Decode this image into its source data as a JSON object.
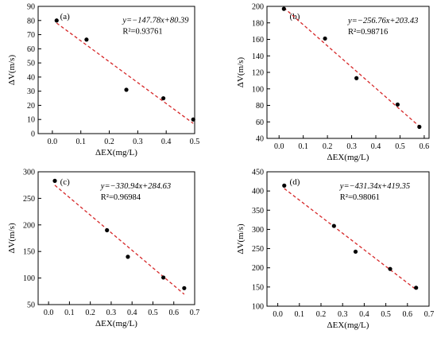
{
  "colors": {
    "fit_line": "#d62728",
    "points": "#000000"
  },
  "chart_data": [
    {
      "type": "scatter",
      "panel": "(a)",
      "xlabel": "ΔEX(mg/L)",
      "ylabel": "ΔV(m/s)",
      "xlim": [
        -0.05,
        0.5
      ],
      "ylim": [
        0,
        90
      ],
      "xticks": [
        0.0,
        0.1,
        0.2,
        0.3,
        0.4,
        0.5
      ],
      "xtick_labels": [
        "0.0",
        "0.1",
        "0.2",
        "0.3",
        "0.4",
        "0.5"
      ],
      "yticks": [
        0,
        10,
        20,
        30,
        40,
        50,
        60,
        70,
        80,
        90
      ],
      "ytick_labels": [
        "0",
        "10",
        "20",
        "30",
        "40",
        "50",
        "60",
        "70",
        "80",
        "90"
      ],
      "points": [
        [
          0.015,
          80
        ],
        [
          0.12,
          66.5
        ],
        [
          0.26,
          31
        ],
        [
          0.39,
          25
        ],
        [
          0.495,
          10
        ]
      ],
      "fit": {
        "slope": -147.78,
        "intercept": 80.39,
        "x_range": [
          0.015,
          0.495
        ]
      },
      "equation": "y=−147.78x+80.39",
      "r2_label": "R²=0.93761"
    },
    {
      "type": "scatter",
      "panel": "(b)",
      "xlabel": "ΔEX(mg/L)",
      "ylabel": "ΔV(m/s)",
      "xlim": [
        -0.05,
        0.62
      ],
      "ylim": [
        40,
        200
      ],
      "xticks": [
        0.0,
        0.1,
        0.2,
        0.3,
        0.4,
        0.5,
        0.6
      ],
      "xtick_labels": [
        "0.0",
        "0.1",
        "0.2",
        "0.3",
        "0.4",
        "0.5",
        "0.6"
      ],
      "yticks": [
        40,
        60,
        80,
        100,
        120,
        140,
        160,
        180,
        200
      ],
      "ytick_labels": [
        "40",
        "60",
        "80",
        "100",
        "120",
        "140",
        "160",
        "180",
        "200"
      ],
      "points": [
        [
          0.02,
          197
        ],
        [
          0.19,
          161
        ],
        [
          0.32,
          113
        ],
        [
          0.49,
          81
        ],
        [
          0.58,
          54
        ]
      ],
      "fit": {
        "slope": -256.76,
        "intercept": 203.43,
        "x_range": [
          0.02,
          0.58
        ]
      },
      "equation": "y=−256.76x+203.43",
      "r2_label": "R²=0.98716"
    },
    {
      "type": "scatter",
      "panel": "(c)",
      "xlabel": "ΔEX(mg/L)",
      "ylabel": "ΔV(m/s)",
      "xlim": [
        -0.05,
        0.7
      ],
      "ylim": [
        50,
        300
      ],
      "xticks": [
        0.0,
        0.1,
        0.2,
        0.3,
        0.4,
        0.5,
        0.6,
        0.7
      ],
      "xtick_labels": [
        "0.0",
        "0.1",
        "0.2",
        "0.3",
        "0.4",
        "0.5",
        "0.6",
        "0.7"
      ],
      "yticks": [
        50,
        100,
        150,
        200,
        250,
        300
      ],
      "ytick_labels": [
        "50",
        "100",
        "150",
        "200",
        "250",
        "300"
      ],
      "points": [
        [
          0.03,
          283
        ],
        [
          0.28,
          190
        ],
        [
          0.38,
          140
        ],
        [
          0.55,
          101
        ],
        [
          0.65,
          81
        ]
      ],
      "fit": {
        "slope": -330.94,
        "intercept": 284.63,
        "x_range": [
          0.03,
          0.65
        ]
      },
      "equation": "y=−330.94x+284.63",
      "r2_label": "R²=0.96984"
    },
    {
      "type": "scatter",
      "panel": "(d)",
      "xlabel": "ΔEX(mg/L)",
      "ylabel": "ΔV(m/s)",
      "xlim": [
        -0.05,
        0.7
      ],
      "ylim": [
        100,
        450
      ],
      "xticks": [
        0.0,
        0.1,
        0.2,
        0.3,
        0.4,
        0.5,
        0.6,
        0.7
      ],
      "xtick_labels": [
        "0.0",
        "0.1",
        "0.2",
        "0.3",
        "0.4",
        "0.5",
        "0.6",
        "0.7"
      ],
      "yticks": [
        100,
        150,
        200,
        250,
        300,
        350,
        400,
        450
      ],
      "ytick_labels": [
        "100",
        "150",
        "200",
        "250",
        "300",
        "350",
        "400",
        "450"
      ],
      "points": [
        [
          0.03,
          414
        ],
        [
          0.26,
          309
        ],
        [
          0.36,
          242
        ],
        [
          0.52,
          197
        ],
        [
          0.64,
          148
        ]
      ],
      "fit": {
        "slope": -431.34,
        "intercept": 419.35,
        "x_range": [
          0.03,
          0.64
        ]
      },
      "equation": "y=−431.34x+419.35",
      "r2_label": "R²=0.98061"
    }
  ]
}
